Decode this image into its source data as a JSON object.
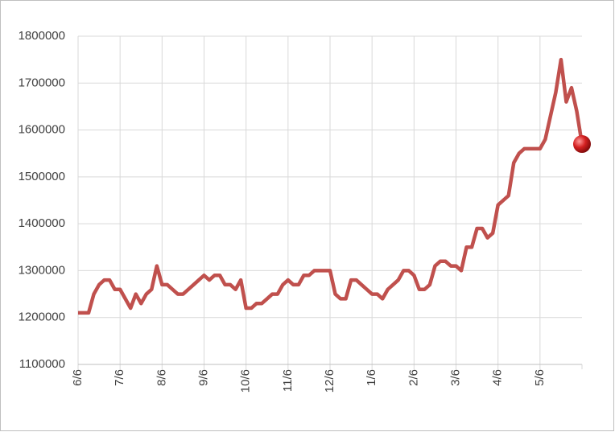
{
  "chart_data": {
    "type": "line",
    "categories": [
      "6/6",
      null,
      null,
      null,
      null,
      null,
      null,
      null,
      "7/6",
      null,
      null,
      null,
      null,
      null,
      null,
      null,
      "8/6",
      null,
      null,
      null,
      null,
      null,
      null,
      null,
      "9/6",
      null,
      null,
      null,
      null,
      null,
      null,
      null,
      "10/6",
      null,
      null,
      null,
      null,
      null,
      null,
      null,
      "11/6",
      null,
      null,
      null,
      null,
      null,
      null,
      null,
      "12/6",
      null,
      null,
      null,
      null,
      null,
      null,
      null,
      "1/6",
      null,
      null,
      null,
      null,
      null,
      null,
      null,
      "2/6",
      null,
      null,
      null,
      null,
      null,
      null,
      null,
      "3/6",
      null,
      null,
      null,
      null,
      null,
      null,
      null,
      "4/6",
      null,
      null,
      null,
      null,
      null,
      null,
      null,
      "5/6",
      null,
      null,
      null,
      null,
      null,
      null,
      null,
      null
    ],
    "series": [
      {
        "color": "#c0504d",
        "values": [
          1210000,
          1210000,
          1210000,
          1250000,
          1270000,
          1280000,
          1280000,
          1260000,
          1260000,
          1240000,
          1220000,
          1250000,
          1230000,
          1250000,
          1260000,
          1310000,
          1270000,
          1270000,
          1260000,
          1250000,
          1250000,
          1260000,
          1270000,
          1280000,
          1290000,
          1280000,
          1290000,
          1290000,
          1270000,
          1270000,
          1260000,
          1280000,
          1220000,
          1220000,
          1230000,
          1230000,
          1240000,
          1250000,
          1250000,
          1270000,
          1280000,
          1270000,
          1270000,
          1290000,
          1290000,
          1300000,
          1300000,
          1300000,
          1300000,
          1250000,
          1240000,
          1240000,
          1280000,
          1280000,
          1270000,
          1260000,
          1250000,
          1250000,
          1240000,
          1260000,
          1270000,
          1280000,
          1300000,
          1300000,
          1290000,
          1260000,
          1260000,
          1270000,
          1310000,
          1320000,
          1320000,
          1310000,
          1310000,
          1300000,
          1350000,
          1350000,
          1390000,
          1390000,
          1370000,
          1380000,
          1440000,
          1450000,
          1460000,
          1530000,
          1550000,
          1560000,
          1560000,
          1560000,
          1560000,
          1580000,
          1630000,
          1680000,
          1750000,
          1660000,
          1690000,
          1640000,
          1570000
        ]
      }
    ],
    "ylim": [
      1100000,
      1800000
    ],
    "yticks": [
      1100000,
      1200000,
      1300000,
      1400000,
      1500000,
      1600000,
      1700000,
      1800000
    ],
    "grid": true
  }
}
